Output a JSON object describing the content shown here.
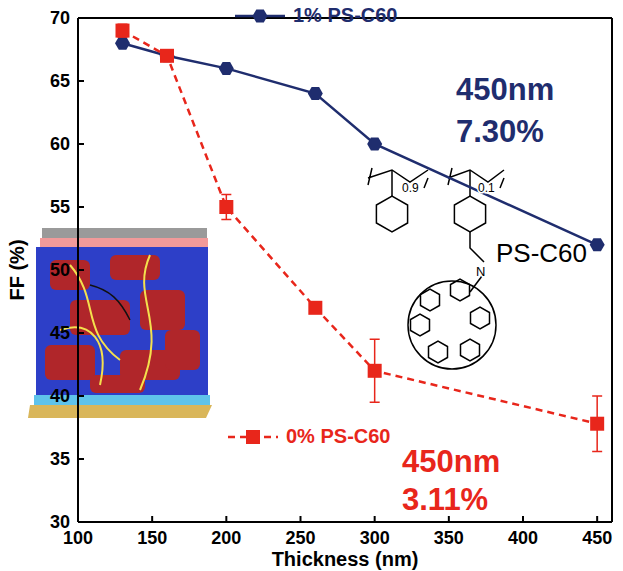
{
  "chart_data": {
    "type": "line",
    "x_label": "Thickness (nm)",
    "y_label": "FF (%)",
    "x": [
      130,
      160,
      200,
      260,
      300,
      450
    ],
    "series": [
      {
        "name": "1% PS-C60",
        "color": "#1f2d6e",
        "marker": "hexagon",
        "line_style": "solid",
        "values": [
          68,
          67,
          66,
          64,
          60,
          52
        ]
      },
      {
        "name": "0% PS-C60",
        "color": "#e8261b",
        "marker": "square",
        "line_style": "dashed",
        "values": [
          69,
          67,
          55,
          47,
          42,
          37.8
        ],
        "errors": [
          0.5,
          0.3,
          1,
          0.3,
          2.5,
          2.2
        ]
      }
    ],
    "xlim": [
      100,
      460
    ],
    "ylim": [
      30,
      70
    ],
    "xticks": [
      100,
      150,
      200,
      250,
      300,
      350,
      400,
      450
    ],
    "yticks": [
      30,
      35,
      40,
      45,
      50,
      55,
      60,
      65,
      70
    ],
    "grid": false,
    "legend": "upper center",
    "annotations": [
      {
        "text": "450nm",
        "color": "#1f2d6e"
      },
      {
        "text": "7.30%",
        "color": "#1f2d6e"
      },
      {
        "text": "450nm",
        "color": "#e8261b"
      },
      {
        "text": "3.11%",
        "color": "#e8261b"
      },
      {
        "text": "PS-C60",
        "color": "#000000"
      },
      {
        "text": "0.9",
        "color": "#000000"
      },
      {
        "text": "0.1",
        "color": "#000000"
      },
      {
        "text": "N",
        "color": "#000000"
      }
    ]
  }
}
